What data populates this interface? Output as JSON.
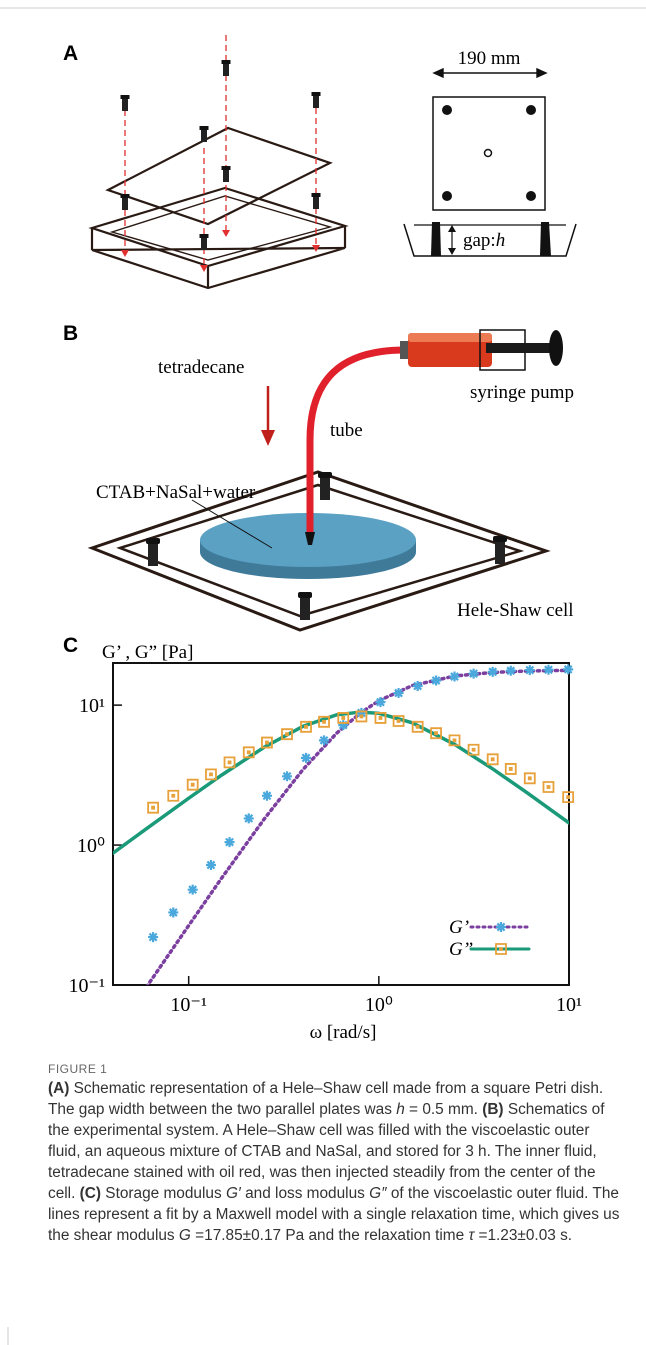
{
  "panel_a": {
    "label": "A",
    "dish_width": "190 mm",
    "gap_prefix": "gap:",
    "gap_symbol": "h"
  },
  "panel_b": {
    "label": "B",
    "outer_fluid": "CTAB+NaSal+water",
    "inner_fluid": "tetradecane",
    "tube": "tube",
    "pump": "syringe pump",
    "cell": "Hele-Shaw cell"
  },
  "panel_c": {
    "label": "C"
  },
  "chart_data": {
    "type": "scatter",
    "y_label": "G’ , G” [Pa]",
    "x_label": "ω  [rad/s]",
    "xscale": "log",
    "yscale": "log",
    "xlim": [
      0.04,
      10
    ],
    "ylim": [
      0.1,
      20
    ],
    "xticks": [
      {
        "value": 0.1,
        "label": "10⁻¹"
      },
      {
        "value": 1,
        "label": "10⁰"
      },
      {
        "value": 10,
        "label": "10¹"
      }
    ],
    "yticks": [
      {
        "value": 0.1,
        "label": "10⁻¹"
      },
      {
        "value": 1,
        "label": "10⁰"
      },
      {
        "value": 10,
        "label": "10¹"
      }
    ],
    "legend": "lower right",
    "x": [
      0.065,
      0.083,
      0.105,
      0.131,
      0.164,
      0.207,
      0.258,
      0.329,
      0.414,
      0.515,
      0.65,
      0.81,
      1.02,
      1.27,
      1.6,
      2.0,
      2.5,
      3.15,
      3.97,
      4.94,
      6.22,
      7.8,
      9.9
    ],
    "series": [
      {
        "name": "G’",
        "color": "#4aa8dc",
        "marker": "star",
        "values": [
          0.22,
          0.33,
          0.48,
          0.72,
          1.05,
          1.55,
          2.25,
          3.1,
          4.2,
          5.6,
          7.2,
          8.8,
          10.5,
          12.2,
          13.7,
          15,
          16,
          16.8,
          17.3,
          17.6,
          17.8,
          17.9,
          18
        ]
      },
      {
        "name": "G”",
        "color": "#e8a13a",
        "marker": "square",
        "values": [
          1.85,
          2.25,
          2.7,
          3.2,
          3.9,
          4.6,
          5.4,
          6.2,
          7.0,
          7.6,
          8.1,
          8.3,
          8.1,
          7.7,
          7.0,
          6.3,
          5.6,
          4.8,
          4.1,
          3.5,
          3.0,
          2.6,
          2.2
        ]
      }
    ],
    "fits": {
      "x": [
        0.04,
        0.06,
        0.1,
        0.15,
        0.25,
        0.4,
        0.6,
        0.8,
        1,
        1.5,
        2.5,
        4,
        6,
        10
      ],
      "series": [
        {
          "color": "#7b3fa0",
          "dash": "dotted",
          "values": [
            null,
            0.0968,
            0.266,
            0.588,
            1.54,
            3.48,
            6.3,
            8.78,
            10.75,
            13.8,
            16.14,
            17.14,
            17.53,
            17.73
          ]
        },
        {
          "color": "#1a9a78",
          "dash": "solid",
          "values": [
            0.876,
            1.31,
            2.16,
            3.18,
            5.01,
            7.07,
            8.53,
            8.92,
            8.74,
            7.48,
            5.25,
            3.48,
            2.37,
            1.44
          ]
        }
      ]
    }
  },
  "caption": {
    "heading": "FIGURE 1",
    "runs": [
      "(A)",
      " Schematic representation of a Hele–Shaw cell made from a square Petri dish. The gap width between the two parallel plates was ",
      "h",
      " = 0.5 mm. ",
      "(B)",
      " Schematics of the experimental system. A Hele–Shaw cell was filled with the viscoelastic outer fluid, an aqueous mixture of CTAB and NaSal, and stored for 3 h. The inner fluid, tetradecane stained with oil red, was then injected steadily from the center of the cell. ",
      "(C)",
      " Storage modulus ",
      "G′",
      " and loss modulus ",
      "G″",
      " of the viscoelastic outer fluid. The lines represent a fit by a Maxwell model with a single relaxation time, which gives us the shear modulus ",
      "G",
      " =17.85±0.17 Pa and the relaxation time ",
      "τ",
      " =1.23±0.03 s."
    ]
  }
}
